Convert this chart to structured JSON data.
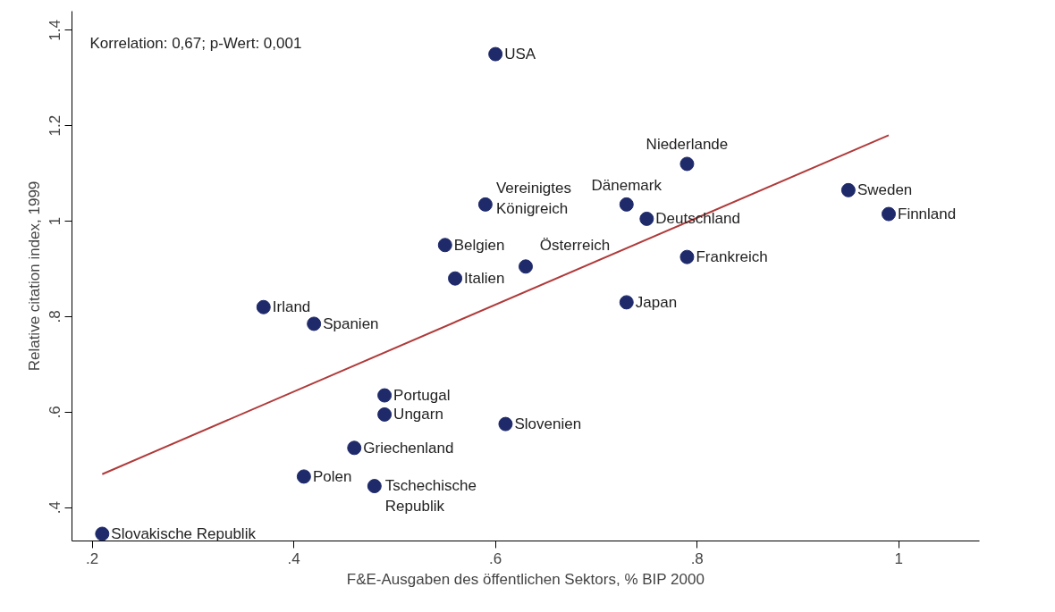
{
  "chart_data": {
    "type": "scatter",
    "xlabel": "F&E-Ausgaben des öffentlichen Sektors, % BIP 2000",
    "ylabel": "Relative citation index, 1999",
    "xlim": [
      0.18,
      1.08
    ],
    "ylim": [
      0.33,
      1.44
    ],
    "xticks": [
      {
        "value": 0.2,
        "label": ".2"
      },
      {
        "value": 0.4,
        "label": ".4"
      },
      {
        "value": 0.6,
        "label": ".6"
      },
      {
        "value": 0.8,
        "label": ".8"
      },
      1
    ],
    "yticks": [
      {
        "value": 0.4,
        "label": ".4"
      },
      {
        "value": 0.6,
        "label": ".6"
      },
      {
        "value": 0.8,
        "label": ".8"
      },
      1,
      1.2,
      1.4
    ],
    "marker": "circle",
    "series": [
      {
        "color": "#1f2a6b",
        "x": [
          0.6,
          0.79,
          0.95,
          0.99,
          0.73,
          0.75,
          0.59,
          0.55,
          0.63,
          0.79,
          0.56,
          0.73,
          0.37,
          0.42,
          0.49,
          0.49,
          0.61,
          0.46,
          0.41,
          0.48,
          0.21
        ],
        "values": [
          1.35,
          1.12,
          1.065,
          1.015,
          1.035,
          1.005,
          1.035,
          0.95,
          0.905,
          0.925,
          0.88,
          0.83,
          0.82,
          0.785,
          0.635,
          0.595,
          0.575,
          0.525,
          0.465,
          0.445,
          0.345
        ]
      },
      {
        "type": "line",
        "color": "#b03a3a",
        "line_style": "solid",
        "marker": "none",
        "x": [
          0.21,
          0.99
        ],
        "values": [
          0.47,
          1.18
        ]
      }
    ],
    "annotations": [
      "Korrelation: 0,67; p-Wert: 0,001",
      {
        "text": "USA",
        "x": 0.6,
        "y": 1.35
      },
      {
        "text": "Niederlande",
        "x": 0.79,
        "y": 1.12
      },
      {
        "text": "Sweden",
        "x": 0.95,
        "y": 1.065
      },
      {
        "text": "Finnland",
        "x": 0.99,
        "y": 1.015
      },
      {
        "text": "Dänemark",
        "x": 0.73,
        "y": 1.035
      },
      {
        "text": "Deutschland",
        "x": 0.75,
        "y": 1.005
      },
      {
        "text": "Vereinigtes\nKönigreich",
        "x": 0.59,
        "y": 1.035
      },
      {
        "text": "Belgien",
        "x": 0.55,
        "y": 0.95
      },
      {
        "text": "Österreich",
        "x": 0.63,
        "y": 0.905
      },
      {
        "text": "Frankreich",
        "x": 0.79,
        "y": 0.925
      },
      {
        "text": "Italien",
        "x": 0.56,
        "y": 0.88
      },
      {
        "text": "Japan",
        "x": 0.73,
        "y": 0.83
      },
      {
        "text": "Irland",
        "x": 0.37,
        "y": 0.82
      },
      {
        "text": "Spanien",
        "x": 0.42,
        "y": 0.785
      },
      {
        "text": "Portugal",
        "x": 0.49,
        "y": 0.635
      },
      {
        "text": "Ungarn",
        "x": 0.49,
        "y": 0.595
      },
      {
        "text": "Slovenien",
        "x": 0.61,
        "y": 0.575
      },
      {
        "text": "Griechenland",
        "x": 0.46,
        "y": 0.525
      },
      {
        "text": "Polen",
        "x": 0.41,
        "y": 0.465
      },
      {
        "text": "Tschechische\nRepublik",
        "x": 0.48,
        "y": 0.445
      },
      {
        "text": "Slovakische Republik",
        "x": 0.21,
        "y": 0.345
      }
    ]
  }
}
